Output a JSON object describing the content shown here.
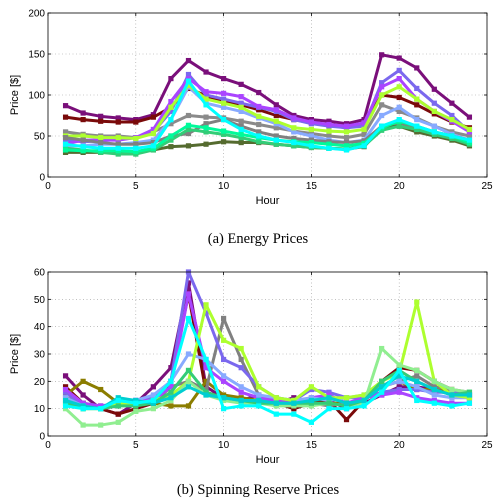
{
  "chart_data": [
    {
      "type": "line",
      "caption": "(a)  Energy Prices",
      "xlabel": "Hour",
      "ylabel": "Price [$]",
      "xlim": [
        0,
        25
      ],
      "ylim": [
        0,
        200
      ],
      "xticks": [
        0,
        5,
        10,
        15,
        20,
        25
      ],
      "yticks": [
        0,
        50,
        100,
        150,
        200
      ],
      "grid": true,
      "x": [
        1,
        2,
        3,
        4,
        5,
        6,
        7,
        8,
        9,
        10,
        11,
        12,
        13,
        14,
        15,
        16,
        17,
        18,
        19,
        20,
        21,
        22,
        23,
        24
      ],
      "series": [
        {
          "color": "#7a0f7a",
          "values": [
            87,
            78,
            74,
            72,
            70,
            76,
            120,
            142,
            128,
            120,
            113,
            103,
            88,
            75,
            70,
            68,
            65,
            70,
            149,
            145,
            133,
            107,
            90,
            73
          ]
        },
        {
          "color": "#7a0a0a",
          "values": [
            73,
            70,
            68,
            67,
            67,
            73,
            85,
            108,
            99,
            92,
            88,
            82,
            75,
            70,
            66,
            63,
            60,
            64,
            100,
            97,
            88,
            77,
            67,
            60
          ]
        },
        {
          "color": "#8a8a8a",
          "values": [
            55,
            52,
            50,
            50,
            48,
            55,
            65,
            75,
            73,
            72,
            68,
            64,
            60,
            56,
            53,
            50,
            48,
            52,
            88,
            80,
            72,
            62,
            55,
            50
          ]
        },
        {
          "color": "#7b68ee",
          "values": [
            45,
            43,
            44,
            46,
            48,
            55,
            80,
            125,
            100,
            95,
            90,
            85,
            80,
            70,
            65,
            62,
            60,
            62,
            115,
            130,
            108,
            90,
            75,
            55
          ]
        },
        {
          "color": "#aa44ff",
          "values": [
            40,
            45,
            45,
            45,
            48,
            58,
            92,
            120,
            104,
            102,
            98,
            86,
            82,
            72,
            67,
            64,
            62,
            66,
            110,
            120,
            95,
            80,
            68,
            55
          ]
        },
        {
          "color": "#88aaff",
          "values": [
            38,
            38,
            40,
            40,
            42,
            45,
            70,
            110,
            90,
            85,
            80,
            72,
            65,
            55,
            50,
            45,
            42,
            45,
            75,
            85,
            70,
            62,
            52,
            45
          ]
        },
        {
          "color": "#adff2f",
          "values": [
            50,
            50,
            48,
            48,
            47,
            53,
            85,
            112,
            95,
            90,
            85,
            74,
            68,
            60,
            58,
            56,
            55,
            58,
            100,
            110,
            95,
            80,
            70,
            58
          ]
        },
        {
          "color": "#808080",
          "values": [
            48,
            45,
            42,
            40,
            40,
            42,
            50,
            53,
            65,
            70,
            62,
            55,
            50,
            47,
            45,
            43,
            42,
            44,
            62,
            66,
            60,
            55,
            50,
            45
          ]
        },
        {
          "color": "#556b2f",
          "values": [
            30,
            30,
            30,
            30,
            30,
            33,
            37,
            38,
            40,
            43,
            42,
            42,
            40,
            38,
            36,
            35,
            34,
            37,
            60,
            62,
            55,
            50,
            45,
            38
          ]
        },
        {
          "color": "#33cc77",
          "values": [
            35,
            33,
            30,
            28,
            28,
            33,
            45,
            58,
            55,
            52,
            48,
            43,
            40,
            38,
            36,
            35,
            34,
            38,
            57,
            62,
            58,
            52,
            47,
            40
          ]
        },
        {
          "color": "#00fa9a",
          "values": [
            33,
            32,
            32,
            32,
            31,
            35,
            50,
            63,
            60,
            56,
            52,
            48,
            45,
            43,
            42,
            40,
            38,
            41,
            60,
            68,
            62,
            55,
            50,
            42
          ]
        },
        {
          "color": "#00ffff",
          "values": [
            40,
            37,
            35,
            35,
            35,
            38,
            70,
            117,
            88,
            70,
            58,
            50,
            45,
            42,
            38,
            35,
            33,
            38,
            62,
            70,
            62,
            55,
            50,
            45
          ]
        }
      ]
    },
    {
      "type": "line",
      "caption": "(b)  Spinning Reserve Prices",
      "xlabel": "Hour",
      "ylabel": "Price [$]",
      "xlim": [
        0,
        25
      ],
      "ylim": [
        0,
        60
      ],
      "xticks": [
        0,
        5,
        10,
        15,
        20,
        25
      ],
      "yticks": [
        0,
        10,
        20,
        30,
        40,
        50,
        60
      ],
      "grid": true,
      "x": [
        1,
        2,
        3,
        4,
        5,
        6,
        7,
        8,
        9,
        10,
        11,
        12,
        13,
        14,
        15,
        16,
        17,
        18,
        19,
        20,
        21,
        22,
        23,
        24
      ],
      "series": [
        {
          "color": "#7a0f7a",
          "values": [
            22,
            15,
            10,
            8,
            12,
            18,
            25,
            56,
            18,
            14,
            13,
            15,
            12,
            14,
            12,
            13,
            10,
            12,
            15,
            18,
            18,
            17,
            16,
            15
          ]
        },
        {
          "color": "#7a0a0a",
          "values": [
            18,
            12,
            10,
            8,
            10,
            12,
            20,
            52,
            16,
            14,
            12,
            12,
            12,
            10,
            12,
            13,
            6,
            13,
            20,
            25,
            24,
            20,
            17,
            14
          ]
        },
        {
          "color": "#8b7d00",
          "values": [
            15,
            20,
            17,
            12,
            12,
            12,
            11,
            11,
            20,
            15,
            14,
            13,
            13,
            13,
            12,
            12,
            12,
            13,
            18,
            20,
            17,
            17,
            17,
            15
          ]
        },
        {
          "color": "#808080",
          "values": [
            14,
            12,
            11,
            11,
            12,
            12,
            18,
            20,
            17,
            43,
            28,
            15,
            13,
            12,
            12,
            11,
            12,
            13,
            18,
            20,
            22,
            18,
            17,
            16
          ]
        },
        {
          "color": "#7b68ee",
          "values": [
            16,
            11,
            10,
            11,
            13,
            14,
            20,
            60,
            45,
            28,
            25,
            18,
            14,
            13,
            17,
            16,
            14,
            14,
            16,
            17,
            17,
            16,
            16,
            15
          ]
        },
        {
          "color": "#aa44ff",
          "values": [
            17,
            12,
            11,
            12,
            13,
            13,
            18,
            52,
            25,
            20,
            16,
            14,
            13,
            12,
            14,
            15,
            12,
            14,
            15,
            16,
            14,
            13,
            12,
            12
          ]
        },
        {
          "color": "#88aaff",
          "values": [
            14,
            11,
            10,
            12,
            13,
            15,
            20,
            30,
            28,
            22,
            18,
            15,
            14,
            13,
            14,
            13,
            14,
            15,
            18,
            20,
            18,
            15,
            14,
            14
          ]
        },
        {
          "color": "#adff2f",
          "values": [
            12,
            10,
            10,
            12,
            12,
            13,
            15,
            20,
            48,
            35,
            32,
            18,
            14,
            13,
            18,
            14,
            14,
            15,
            20,
            23,
            49,
            20,
            15,
            14
          ]
        },
        {
          "color": "#90ee90",
          "values": [
            10,
            4,
            4,
            5,
            9,
            10,
            13,
            20,
            15,
            13,
            12,
            12,
            11,
            11,
            11,
            12,
            11,
            12,
            32,
            26,
            24,
            20,
            17,
            16
          ]
        },
        {
          "color": "#33cc77",
          "values": [
            12,
            10,
            10,
            11,
            11,
            12,
            16,
            24,
            16,
            14,
            13,
            12,
            12,
            12,
            12,
            12,
            11,
            13,
            20,
            24,
            20,
            17,
            15,
            16
          ]
        },
        {
          "color": "#00ced1",
          "values": [
            13,
            11,
            10,
            14,
            13,
            12,
            14,
            18,
            15,
            14,
            13,
            13,
            12,
            12,
            13,
            14,
            12,
            13,
            18,
            22,
            20,
            17,
            15,
            15
          ]
        },
        {
          "color": "#00ffff",
          "values": [
            11,
            10,
            10,
            13,
            12,
            13,
            20,
            43,
            28,
            10,
            11,
            11,
            8,
            8,
            5,
            10,
            10,
            11,
            16,
            24,
            13,
            12,
            11,
            12
          ]
        }
      ]
    }
  ]
}
